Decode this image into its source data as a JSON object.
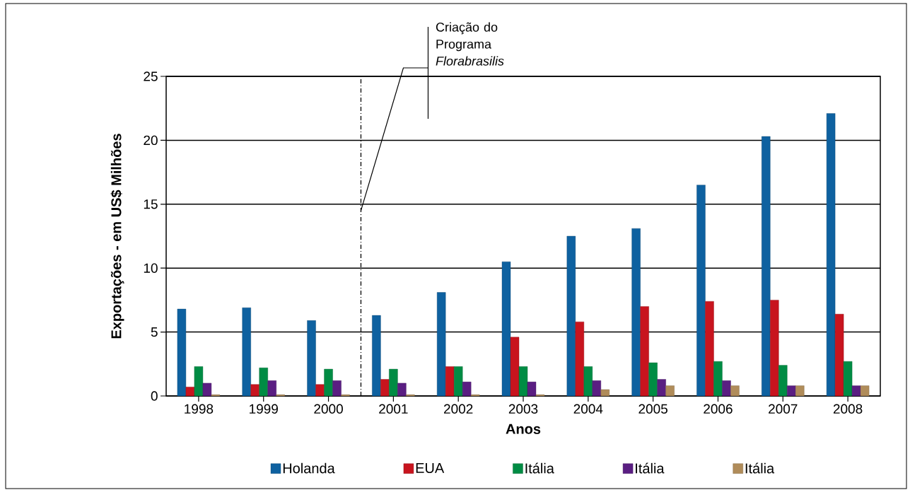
{
  "chart_data": {
    "type": "bar",
    "xlabel": "Anos",
    "ylabel": "Exportações - em US$ Milhões",
    "x": [
      1998,
      1999,
      2000,
      2001,
      2002,
      2003,
      2004,
      2005,
      2006,
      2007,
      2008
    ],
    "series": [
      {
        "name": "Holanda",
        "color": "#0e61a0",
        "values": [
          6.8,
          6.9,
          5.9,
          6.3,
          8.1,
          10.5,
          12.5,
          13.1,
          16.5,
          20.3,
          22.1
        ]
      },
      {
        "name": "EUA",
        "color": "#c8141e",
        "values": [
          0.7,
          0.9,
          0.9,
          1.3,
          2.3,
          4.6,
          5.8,
          7.0,
          7.4,
          7.5,
          6.4
        ]
      },
      {
        "name": "Itália",
        "color": "#008c44",
        "values": [
          2.3,
          2.2,
          2.1,
          2.1,
          2.3,
          2.3,
          2.3,
          2.6,
          2.7,
          2.4,
          2.7
        ]
      },
      {
        "name": "Itália",
        "color": "#5a1e82",
        "values": [
          1.0,
          1.2,
          1.2,
          1.0,
          1.1,
          1.1,
          1.2,
          1.3,
          1.2,
          0.8,
          0.8
        ]
      },
      {
        "name": "Itália",
        "color": "#b08c5a",
        "values": [
          0.1,
          0.1,
          0.1,
          0.1,
          0.1,
          0.1,
          0.5,
          0.8,
          0.8,
          0.8,
          0.8
        ]
      }
    ],
    "xlim": [
      1997.5,
      2008.5
    ],
    "xticks": [
      1998,
      1999,
      2000,
      2001,
      2002,
      2003,
      2004,
      2005,
      2006,
      2007,
      2008
    ],
    "ylim": [
      0,
      25
    ],
    "yticks": [
      0,
      5,
      10,
      15,
      20,
      25
    ],
    "grid": "y",
    "legend": "bottom",
    "ref_lines": [
      {
        "axis": "x",
        "value": 2000.5,
        "label": "Criação do Programa *Florabrasilis*",
        "line_style": "dashed"
      }
    ]
  }
}
